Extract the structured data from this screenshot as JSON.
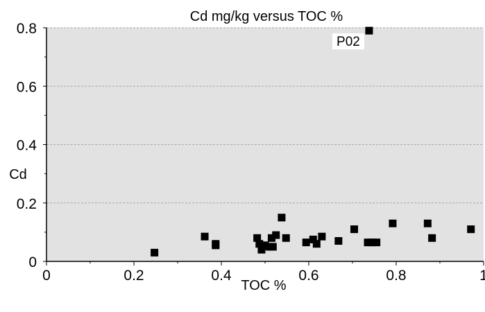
{
  "chart_data": {
    "type": "scatter",
    "title": "Cd mg/kg versus TOC %",
    "xlabel": "TOC %",
    "ylabel": "Cd",
    "xlim": [
      0,
      1
    ],
    "ylim": [
      0,
      0.8
    ],
    "xticks": [
      0,
      0.2,
      0.4,
      0.6,
      0.8,
      1
    ],
    "xtick_labels": [
      "0",
      "0.2",
      "0.4",
      "0.6",
      "0.8",
      "1"
    ],
    "yticks": [
      0,
      0.2,
      0.4,
      0.6,
      0.8
    ],
    "ytick_labels": [
      "0",
      "0.2",
      "0.4",
      "0.6",
      "0.8"
    ],
    "grid": "horizontal dashed",
    "colors": {
      "plot_background": "#e2e2e2",
      "marker": "#000000",
      "grid": "#a8a8a8"
    },
    "points": [
      {
        "x": 0.247,
        "y": 0.03
      },
      {
        "x": 0.362,
        "y": 0.085
      },
      {
        "x": 0.387,
        "y": 0.06
      },
      {
        "x": 0.387,
        "y": 0.055
      },
      {
        "x": 0.482,
        "y": 0.08
      },
      {
        "x": 0.487,
        "y": 0.06
      },
      {
        "x": 0.492,
        "y": 0.04
      },
      {
        "x": 0.5,
        "y": 0.055
      },
      {
        "x": 0.51,
        "y": 0.05
      },
      {
        "x": 0.515,
        "y": 0.08
      },
      {
        "x": 0.518,
        "y": 0.05
      },
      {
        "x": 0.525,
        "y": 0.09
      },
      {
        "x": 0.538,
        "y": 0.15
      },
      {
        "x": 0.548,
        "y": 0.08
      },
      {
        "x": 0.594,
        "y": 0.065
      },
      {
        "x": 0.61,
        "y": 0.075
      },
      {
        "x": 0.618,
        "y": 0.06
      },
      {
        "x": 0.63,
        "y": 0.085
      },
      {
        "x": 0.668,
        "y": 0.07
      },
      {
        "x": 0.704,
        "y": 0.11
      },
      {
        "x": 0.735,
        "y": 0.065
      },
      {
        "x": 0.745,
        "y": 0.065
      },
      {
        "x": 0.755,
        "y": 0.065
      },
      {
        "x": 0.792,
        "y": 0.13
      },
      {
        "x": 0.872,
        "y": 0.13
      },
      {
        "x": 0.882,
        "y": 0.08
      },
      {
        "x": 0.971,
        "y": 0.11
      },
      {
        "x": 0.738,
        "y": 0.79
      }
    ],
    "annotations": [
      {
        "text": "P02",
        "x": 0.738,
        "y": 0.79
      }
    ]
  }
}
